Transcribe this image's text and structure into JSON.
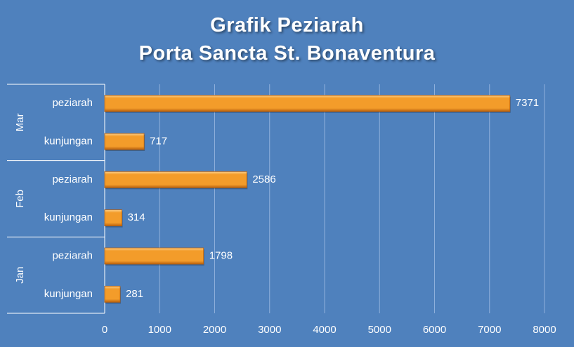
{
  "chart_data": {
    "type": "bar",
    "orientation": "horizontal",
    "title_lines": [
      "Grafik Peziarah",
      "Porta Sancta St. Bonaventura"
    ],
    "groups": [
      {
        "name": "Mar",
        "rows": [
          {
            "label": "peziarah",
            "value": 7371
          },
          {
            "label": "kunjungan",
            "value": 717
          }
        ]
      },
      {
        "name": "Feb",
        "rows": [
          {
            "label": "peziarah",
            "value": 2586
          },
          {
            "label": "kunjungan",
            "value": 314
          }
        ]
      },
      {
        "name": "Jan",
        "rows": [
          {
            "label": "peziarah",
            "value": 1798
          },
          {
            "label": "kunjungan",
            "value": 281
          }
        ]
      }
    ],
    "xlim": [
      0,
      8000
    ],
    "xticks": [
      0,
      1000,
      2000,
      3000,
      4000,
      5000,
      6000,
      7000,
      8000
    ],
    "grid": true,
    "data_labels": true,
    "colors": {
      "background": "#4f81bd",
      "bar": "#f39c2a",
      "bar_light": "#fcd08a",
      "bar_dark": "#b8600d",
      "gridline": "#8fb0dc",
      "text": "#ffffff"
    }
  }
}
